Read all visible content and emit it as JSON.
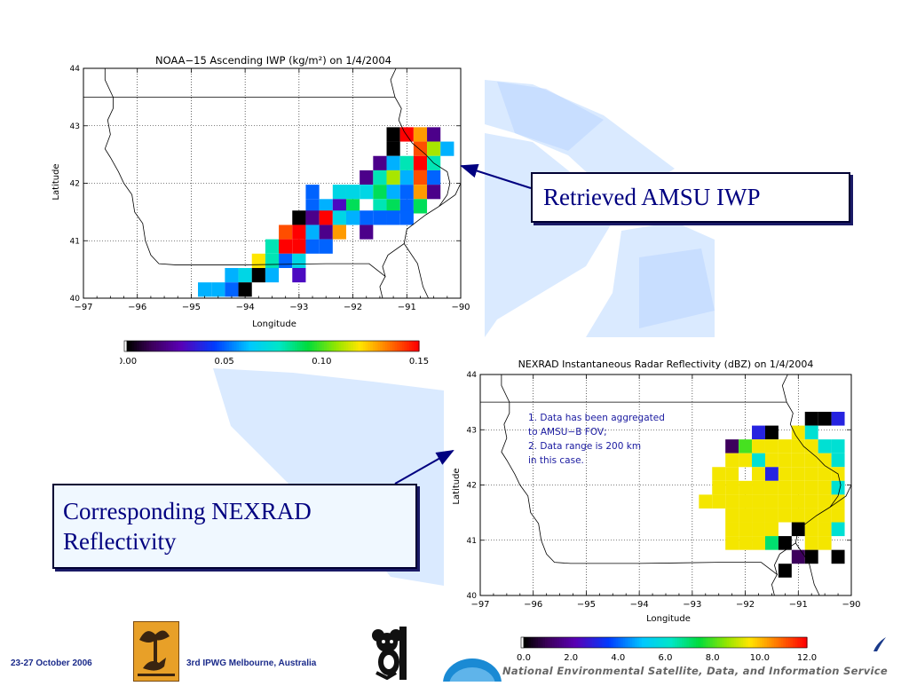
{
  "slide": {
    "footer_date": "23-27 October 2006",
    "footer_event": "3rd IPWG  Melbourne, Australia",
    "footer_agency": "National Environmental Satellite, Data, and Information Service",
    "callout_amsu": "Retrieved AMSU IWP",
    "callout_nexrad_line1": "Corresponding NEXRAD",
    "callout_nexrad_line2": "Reflectivity",
    "colors": {
      "callout_text": "#000080",
      "callout_border": "#000033",
      "footer_text": "#1a2a8a",
      "watermark": "#cce6ff"
    }
  },
  "chart_data": [
    {
      "type": "heatmap",
      "title": "NOAA−15 Ascending IWP (kg/m²) on 1/4/2004",
      "xlabel": "Longitude",
      "ylabel": "Latitude",
      "xlim": [
        -97,
        -90
      ],
      "ylim": [
        40,
        44
      ],
      "xticks": [
        "−97",
        "−96",
        "−95",
        "−94",
        "−93",
        "−92",
        "−91",
        "−90"
      ],
      "yticks": [
        "40",
        "41",
        "42",
        "43",
        "44"
      ],
      "grid": true,
      "colorbar": {
        "min": 0.0,
        "max": 0.15,
        "ticks": [
          "0.00",
          "0.05",
          "0.10",
          "0.15"
        ]
      },
      "cells": [
        [
          -91.25,
          42.85,
          0.0
        ],
        [
          -91.0,
          42.85,
          0.15
        ],
        [
          -90.75,
          42.85,
          0.13
        ],
        [
          -90.5,
          42.85,
          0.02
        ],
        [
          -91.25,
          42.6,
          0.0
        ],
        [
          -90.75,
          42.6,
          0.14
        ],
        [
          -90.5,
          42.6,
          0.11
        ],
        [
          -90.25,
          42.6,
          0.06
        ],
        [
          -91.5,
          42.35,
          0.02
        ],
        [
          -91.25,
          42.35,
          0.06
        ],
        [
          -91.0,
          42.35,
          0.08
        ],
        [
          -90.75,
          42.35,
          0.15
        ],
        [
          -90.5,
          42.35,
          0.08
        ],
        [
          -91.75,
          42.1,
          0.02
        ],
        [
          -91.5,
          42.1,
          0.08
        ],
        [
          -91.25,
          42.1,
          0.11
        ],
        [
          -91.0,
          42.1,
          0.06
        ],
        [
          -90.75,
          42.1,
          0.14
        ],
        [
          -90.5,
          42.1,
          0.05
        ],
        [
          -92.75,
          41.85,
          0.05
        ],
        [
          -92.25,
          41.85,
          0.07
        ],
        [
          -92.0,
          41.85,
          0.07
        ],
        [
          -91.75,
          41.85,
          0.07
        ],
        [
          -91.5,
          41.85,
          0.09
        ],
        [
          -91.25,
          41.85,
          0.06
        ],
        [
          -91.0,
          41.85,
          0.05
        ],
        [
          -90.75,
          41.85,
          0.13
        ],
        [
          -90.5,
          41.85,
          0.02
        ],
        [
          -92.75,
          41.6,
          0.05
        ],
        [
          -92.5,
          41.6,
          0.06
        ],
        [
          -92.25,
          41.6,
          0.03
        ],
        [
          -92.0,
          41.6,
          0.09
        ],
        [
          -91.5,
          41.6,
          0.08
        ],
        [
          -91.25,
          41.6,
          0.09
        ],
        [
          -91.0,
          41.6,
          0.05
        ],
        [
          -90.75,
          41.6,
          0.09
        ],
        [
          -93.0,
          41.4,
          0.0
        ],
        [
          -92.75,
          41.4,
          0.02
        ],
        [
          -92.5,
          41.4,
          0.15
        ],
        [
          -92.25,
          41.4,
          0.07
        ],
        [
          -92.0,
          41.4,
          0.06
        ],
        [
          -91.75,
          41.4,
          0.05
        ],
        [
          -91.5,
          41.4,
          0.05
        ],
        [
          -91.25,
          41.4,
          0.05
        ],
        [
          -91.0,
          41.4,
          0.05
        ],
        [
          -93.25,
          41.15,
          0.14
        ],
        [
          -93.0,
          41.15,
          0.15
        ],
        [
          -92.75,
          41.15,
          0.06
        ],
        [
          -92.5,
          41.15,
          0.02
        ],
        [
          -92.25,
          41.15,
          0.13
        ],
        [
          -91.75,
          41.15,
          0.02
        ],
        [
          -93.5,
          40.9,
          0.08
        ],
        [
          -93.25,
          40.9,
          0.15
        ],
        [
          -93.0,
          40.9,
          0.15
        ],
        [
          -92.75,
          40.9,
          0.05
        ],
        [
          -92.5,
          40.9,
          0.05
        ],
        [
          -93.75,
          40.65,
          0.12
        ],
        [
          -93.5,
          40.65,
          0.08
        ],
        [
          -93.25,
          40.65,
          0.05
        ],
        [
          -93.0,
          40.65,
          0.07
        ],
        [
          -94.25,
          40.4,
          0.06
        ],
        [
          -94.0,
          40.4,
          0.07
        ],
        [
          -93.75,
          40.4,
          0.0
        ],
        [
          -93.5,
          40.4,
          0.06
        ],
        [
          -93.0,
          40.4,
          0.03
        ],
        [
          -94.75,
          40.15,
          0.06
        ],
        [
          -94.5,
          40.15,
          0.06
        ],
        [
          -94.25,
          40.15,
          0.05
        ],
        [
          -94.0,
          40.15,
          0.0
        ]
      ]
    },
    {
      "type": "heatmap",
      "title": "NEXRAD Instantaneous Radar Reflectivity (dBZ) on 1/4/2004",
      "xlabel": "Longitude",
      "ylabel": "Latitude",
      "xlim": [
        -97,
        -90
      ],
      "ylim": [
        40,
        44
      ],
      "xticks": [
        "−97",
        "−96",
        "−95",
        "−94",
        "−93",
        "−92",
        "−91",
        "−90"
      ],
      "yticks": [
        "40",
        "41",
        "42",
        "43",
        "44"
      ],
      "grid": true,
      "annotation": [
        "1.  Data has been aggregated",
        "     to AMSU−B FOV;",
        "2.  Data range is 200 km",
        "     in this case."
      ],
      "colorbar": {
        "min": 0.0,
        "max": 12.0,
        "ticks": [
          "0.0",
          "2.0",
          "4.0",
          "6.0",
          "8.0",
          "10.0",
          "12.0"
        ]
      },
      "cells": [
        [
          -90.75,
          43.2,
          0.0
        ],
        [
          -90.5,
          43.2,
          0.0
        ],
        [
          -90.25,
          43.2,
          3.0
        ],
        [
          -91.75,
          42.95,
          3.0
        ],
        [
          -91.5,
          42.95,
          0.0
        ],
        [
          -91.0,
          42.95,
          9.5
        ],
        [
          -90.75,
          42.95,
          6.0
        ],
        [
          -92.25,
          42.7,
          1.0
        ],
        [
          -92.0,
          42.7,
          8.0
        ],
        [
          -91.75,
          42.7,
          9.5
        ],
        [
          -91.5,
          42.7,
          9.5
        ],
        [
          -91.25,
          42.7,
          9.5
        ],
        [
          -91.0,
          42.7,
          9.5
        ],
        [
          -90.75,
          42.7,
          9.5
        ],
        [
          -90.5,
          42.7,
          6.0
        ],
        [
          -90.25,
          42.7,
          6.0
        ],
        [
          -92.25,
          42.45,
          9.5
        ],
        [
          -92.0,
          42.45,
          9.5
        ],
        [
          -91.75,
          42.45,
          6.0
        ],
        [
          -91.5,
          42.45,
          9.5
        ],
        [
          -91.25,
          42.45,
          9.5
        ],
        [
          -91.0,
          42.45,
          9.5
        ],
        [
          -90.75,
          42.45,
          9.5
        ],
        [
          -90.5,
          42.45,
          9.5
        ],
        [
          -90.25,
          42.45,
          6.0
        ],
        [
          -92.5,
          42.2,
          9.5
        ],
        [
          -92.25,
          42.2,
          9.5
        ],
        [
          -91.75,
          42.2,
          9.5
        ],
        [
          -91.5,
          42.2,
          3.0
        ],
        [
          -91.25,
          42.2,
          9.5
        ],
        [
          -91.0,
          42.2,
          9.5
        ],
        [
          -90.75,
          42.2,
          9.5
        ],
        [
          -90.5,
          42.2,
          9.5
        ],
        [
          -90.25,
          42.2,
          9.5
        ],
        [
          -92.5,
          41.95,
          9.5
        ],
        [
          -92.25,
          41.95,
          9.5
        ],
        [
          -92.0,
          41.95,
          9.5
        ],
        [
          -91.75,
          41.95,
          9.5
        ],
        [
          -91.5,
          41.95,
          9.5
        ],
        [
          -91.25,
          41.95,
          9.5
        ],
        [
          -91.0,
          41.95,
          9.5
        ],
        [
          -90.75,
          41.95,
          9.5
        ],
        [
          -90.5,
          41.95,
          9.5
        ],
        [
          -90.25,
          41.95,
          6.0
        ],
        [
          -92.75,
          41.7,
          9.5
        ],
        [
          -92.5,
          41.7,
          9.5
        ],
        [
          -92.25,
          41.7,
          9.5
        ],
        [
          -92.0,
          41.7,
          9.5
        ],
        [
          -91.75,
          41.7,
          9.5
        ],
        [
          -91.5,
          41.7,
          9.5
        ],
        [
          -91.25,
          41.7,
          9.5
        ],
        [
          -91.0,
          41.7,
          9.5
        ],
        [
          -90.75,
          41.7,
          9.5
        ],
        [
          -90.5,
          41.7,
          9.5
        ],
        [
          -90.25,
          41.7,
          9.5
        ],
        [
          -92.25,
          41.45,
          9.5
        ],
        [
          -92.0,
          41.45,
          9.5
        ],
        [
          -91.75,
          41.45,
          9.5
        ],
        [
          -91.5,
          41.45,
          9.5
        ],
        [
          -91.25,
          41.45,
          9.5
        ],
        [
          -91.0,
          41.45,
          9.5
        ],
        [
          -90.75,
          41.45,
          9.5
        ],
        [
          -90.5,
          41.45,
          9.5
        ],
        [
          -90.25,
          41.45,
          9.5
        ],
        [
          -92.25,
          41.2,
          9.5
        ],
        [
          -92.0,
          41.2,
          9.5
        ],
        [
          -91.75,
          41.2,
          9.5
        ],
        [
          -91.5,
          41.2,
          9.5
        ],
        [
          -91.0,
          41.2,
          0.0
        ],
        [
          -90.75,
          41.2,
          9.5
        ],
        [
          -90.5,
          41.2,
          9.5
        ],
        [
          -90.25,
          41.2,
          6.0
        ],
        [
          -92.25,
          40.95,
          9.5
        ],
        [
          -92.0,
          40.95,
          9.5
        ],
        [
          -91.75,
          40.95,
          9.5
        ],
        [
          -91.5,
          40.95,
          7.0
        ],
        [
          -91.25,
          40.95,
          0.0
        ],
        [
          -90.75,
          40.95,
          9.5
        ],
        [
          -90.5,
          40.95,
          9.5
        ],
        [
          -91.0,
          40.7,
          1.0
        ],
        [
          -90.75,
          40.7,
          0.0
        ],
        [
          -90.25,
          40.7,
          0.0
        ],
        [
          -91.25,
          40.45,
          0.0
        ]
      ]
    }
  ]
}
